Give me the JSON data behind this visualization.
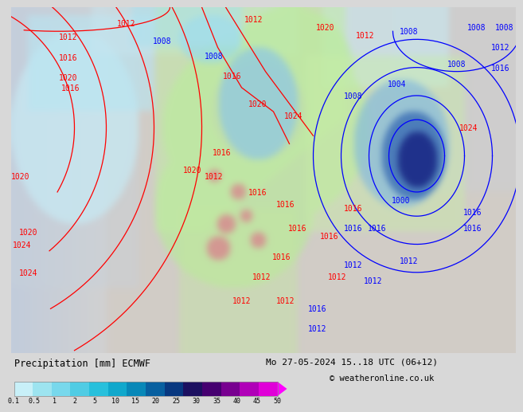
{
  "title_left": "Precipitation [mm] ECMWF",
  "title_right": "Mo 27-05-2024 15..18 UTC (06+12)",
  "credit": "© weatheronline.co.uk",
  "colorbar_labels": [
    "0.1",
    "0.5",
    "1",
    "2",
    "5",
    "10",
    "15",
    "20",
    "25",
    "30",
    "35",
    "40",
    "45",
    "50"
  ],
  "colorbar_colors": [
    "#c8f0f8",
    "#9de4f0",
    "#78d8ec",
    "#50cce4",
    "#28c0dc",
    "#10a8cc",
    "#0888b8",
    "#0860a0",
    "#083880",
    "#1c1060",
    "#460070",
    "#780090",
    "#b000b8",
    "#e000d8",
    "#ff00ff"
  ],
  "bg_color": "#d8d8d8",
  "ocean_color": "#c8d4e0",
  "land_color": "#d0ccc8",
  "green_precip": "#b8e8a0",
  "cyan_precip": "#90dce8",
  "blue_precip": "#4080c0",
  "label_fontsize": 7,
  "cb_fontsize": 7
}
